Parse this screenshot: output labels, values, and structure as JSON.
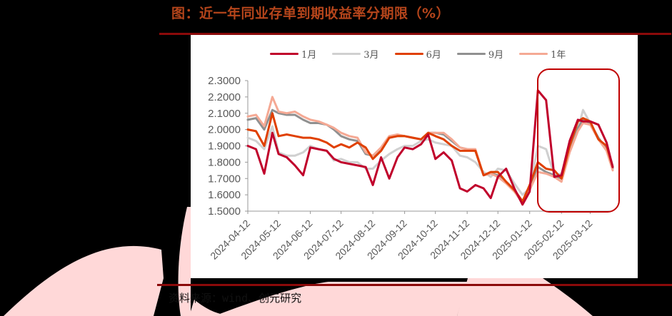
{
  "figure": {
    "title": "图：近一年同业存单到期收益率分期限（%）",
    "source": "资料来源：wind、创元研究"
  },
  "colors": {
    "title": "#b5451b",
    "rule": "#8b0a0a",
    "highlight_box": "#c00000",
    "axis": "#999999",
    "tick_label": "#595959"
  },
  "chart_data": {
    "type": "line",
    "title": "近一年同业存单到期收益率分期限（%）",
    "xlabel": "",
    "ylabel": "%",
    "ylim": [
      1.5,
      2.3
    ],
    "yticks": [
      "2.3000",
      "2.2000",
      "2.1000",
      "2.0000",
      "1.9000",
      "1.8000",
      "1.7000",
      "1.6000",
      "1.5000"
    ],
    "x_tick_labels": [
      "2024-04-12",
      "2024-05-12",
      "2024-06-12",
      "2024-07-12",
      "2024-08-12",
      "2024-09-12",
      "2024-10-12",
      "2024-11-12",
      "2024-12-12",
      "2025-01-12",
      "2025-02-12",
      "2025-03-12"
    ],
    "grid": false,
    "legend_position": "top",
    "annotations": [
      "rounded red box highlighting 2025-02 to 2025-03 period"
    ],
    "x": [
      "2024-04-12",
      "2024-04-20",
      "2024-04-28",
      "2024-05-06",
      "2024-05-12",
      "2024-05-20",
      "2024-05-28",
      "2024-06-05",
      "2024-06-12",
      "2024-06-20",
      "2024-06-28",
      "2024-07-05",
      "2024-07-12",
      "2024-07-20",
      "2024-07-28",
      "2024-08-05",
      "2024-08-12",
      "2024-08-20",
      "2024-08-28",
      "2024-09-05",
      "2024-09-12",
      "2024-09-20",
      "2024-09-28",
      "2024-10-05",
      "2024-10-12",
      "2024-10-20",
      "2024-10-28",
      "2024-11-05",
      "2024-11-12",
      "2024-11-20",
      "2024-11-28",
      "2024-12-05",
      "2024-12-12",
      "2024-12-20",
      "2024-12-28",
      "2025-01-05",
      "2025-01-12",
      "2025-01-20",
      "2025-01-28",
      "2025-02-05",
      "2025-02-12",
      "2025-02-20",
      "2025-02-28",
      "2025-03-05",
      "2025-03-12",
      "2025-03-20",
      "2025-03-28",
      "2025-04-03"
    ],
    "series": [
      {
        "name": "1月",
        "color": "#c0002b",
        "values": [
          1.9,
          1.88,
          1.73,
          1.98,
          1.85,
          1.83,
          1.78,
          1.72,
          1.89,
          1.88,
          1.87,
          1.82,
          1.8,
          1.79,
          1.78,
          1.77,
          1.66,
          1.83,
          1.7,
          1.83,
          1.89,
          1.88,
          1.91,
          1.97,
          1.82,
          1.86,
          1.81,
          1.64,
          1.62,
          1.66,
          1.64,
          1.58,
          1.71,
          1.76,
          1.64,
          1.54,
          1.62,
          2.24,
          2.18,
          1.71,
          1.72,
          1.93,
          2.06,
          2.05,
          2.05,
          2.03,
          1.92,
          1.77
        ]
      },
      {
        "name": "3月",
        "color": "#d0d0d0",
        "values": [
          1.95,
          1.93,
          1.88,
          2.02,
          1.86,
          1.84,
          1.84,
          1.86,
          1.9,
          1.88,
          1.87,
          1.81,
          1.82,
          1.8,
          1.8,
          1.76,
          1.76,
          1.81,
          1.85,
          1.88,
          1.9,
          1.9,
          1.93,
          1.94,
          1.92,
          1.91,
          1.9,
          1.84,
          1.83,
          1.8,
          1.74,
          1.71,
          1.76,
          1.75,
          1.67,
          1.6,
          1.64,
          1.9,
          1.88,
          1.72,
          1.73,
          1.89,
          2.0,
          2.12,
          2.04,
          1.94,
          1.9,
          1.78
        ]
      },
      {
        "name": "6月",
        "color": "#e04000",
        "values": [
          2.0,
          1.99,
          1.9,
          2.1,
          1.96,
          1.97,
          1.96,
          1.95,
          1.95,
          1.94,
          1.92,
          1.89,
          1.91,
          1.89,
          1.92,
          1.89,
          1.82,
          1.87,
          1.95,
          1.96,
          1.96,
          1.95,
          1.94,
          1.98,
          1.96,
          1.94,
          1.9,
          1.87,
          1.87,
          1.87,
          1.72,
          1.74,
          1.74,
          1.68,
          1.63,
          1.56,
          1.66,
          1.8,
          1.76,
          1.75,
          1.7,
          1.9,
          2.05,
          2.07,
          2.05,
          1.94,
          1.9,
          1.77
        ]
      },
      {
        "name": "9月",
        "color": "#909090",
        "values": [
          2.06,
          2.07,
          2.0,
          2.12,
          2.1,
          2.09,
          2.09,
          2.06,
          2.04,
          2.04,
          2.03,
          2.0,
          1.96,
          1.94,
          1.93,
          1.85,
          1.84,
          1.87,
          1.95,
          1.96,
          1.96,
          1.95,
          1.94,
          1.98,
          1.98,
          1.97,
          1.93,
          1.89,
          1.88,
          1.87,
          1.72,
          1.73,
          1.72,
          1.68,
          1.63,
          1.56,
          1.64,
          1.77,
          1.74,
          1.72,
          1.7,
          1.88,
          2.01,
          2.06,
          2.04,
          1.95,
          1.88,
          1.76
        ]
      },
      {
        "name": "1年",
        "color": "#f5a994",
        "values": [
          2.08,
          2.09,
          2.02,
          2.2,
          2.11,
          2.1,
          2.11,
          2.08,
          2.06,
          2.05,
          2.03,
          2.01,
          1.98,
          1.96,
          1.95,
          1.86,
          1.84,
          1.89,
          1.96,
          1.97,
          1.96,
          1.95,
          1.94,
          1.98,
          1.98,
          1.98,
          1.94,
          1.89,
          1.88,
          1.88,
          1.72,
          1.73,
          1.71,
          1.67,
          1.62,
          1.55,
          1.63,
          1.74,
          1.73,
          1.71,
          1.68,
          1.86,
          1.99,
          2.04,
          2.03,
          1.94,
          1.87,
          1.75
        ]
      }
    ]
  }
}
